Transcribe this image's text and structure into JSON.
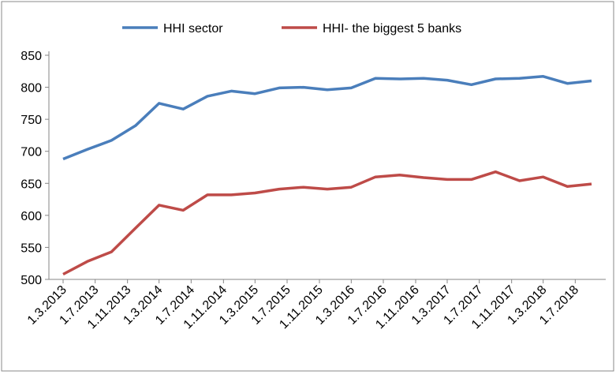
{
  "chart_data": {
    "type": "line",
    "x": [
      "2013-03-01",
      "2013-06-01",
      "2013-09-01",
      "2013-12-01",
      "2014-03-01",
      "2014-06-01",
      "2014-09-01",
      "2014-12-01",
      "2015-03-01",
      "2015-06-01",
      "2015-09-01",
      "2015-12-01",
      "2016-03-01",
      "2016-06-01",
      "2016-09-01",
      "2016-12-01",
      "2017-03-01",
      "2017-06-01",
      "2017-09-01",
      "2017-12-01",
      "2018-03-01",
      "2018-06-01",
      "2018-09-01"
    ],
    "series": [
      {
        "name": "HHI sector",
        "color": "#4a7ebb",
        "values": [
          688,
          703,
          717,
          740,
          775,
          766,
          786,
          794,
          790,
          799,
          800,
          796,
          799,
          814,
          813,
          814,
          811,
          804,
          813,
          814,
          817,
          806,
          810
        ]
      },
      {
        "name": "HHI- the biggest 5 banks",
        "color": "#be4b48",
        "values": [
          508,
          528,
          543,
          580,
          616,
          608,
          632,
          632,
          635,
          641,
          644,
          641,
          644,
          660,
          663,
          659,
          656,
          656,
          668,
          654,
          660,
          645,
          649
        ]
      }
    ],
    "xlim": [
      "2013-03-01",
      "2018-09-01"
    ],
    "xticks": [
      {
        "value": "2013-03-01",
        "label": "1.3.2013"
      },
      {
        "value": "2013-07-01",
        "label": "1.7.2013"
      },
      {
        "value": "2013-11-01",
        "label": "1.11.2013"
      },
      {
        "value": "2014-03-01",
        "label": "1.3.2014"
      },
      {
        "value": "2014-07-01",
        "label": "1.7.2014"
      },
      {
        "value": "2014-11-01",
        "label": "1.11.2014"
      },
      {
        "value": "2015-03-01",
        "label": "1.3.2015"
      },
      {
        "value": "2015-07-01",
        "label": "1.7.2015"
      },
      {
        "value": "2015-11-01",
        "label": "1.11.2015"
      },
      {
        "value": "2016-03-01",
        "label": "1.3.2016"
      },
      {
        "value": "2016-07-01",
        "label": "1.7.2016"
      },
      {
        "value": "2016-11-01",
        "label": "1.11.2016"
      },
      {
        "value": "2017-03-01",
        "label": "1.3.2017"
      },
      {
        "value": "2017-07-01",
        "label": "1.7.2017"
      },
      {
        "value": "2017-11-01",
        "label": "1.11.2017"
      },
      {
        "value": "2018-03-01",
        "label": "1.3.2018"
      },
      {
        "value": "2018-07-01",
        "label": "1.7.2018"
      }
    ],
    "ylim": [
      500,
      850
    ],
    "yticks": [
      500,
      550,
      600,
      650,
      700,
      750,
      800,
      850
    ],
    "grid": false,
    "legend": "top"
  }
}
